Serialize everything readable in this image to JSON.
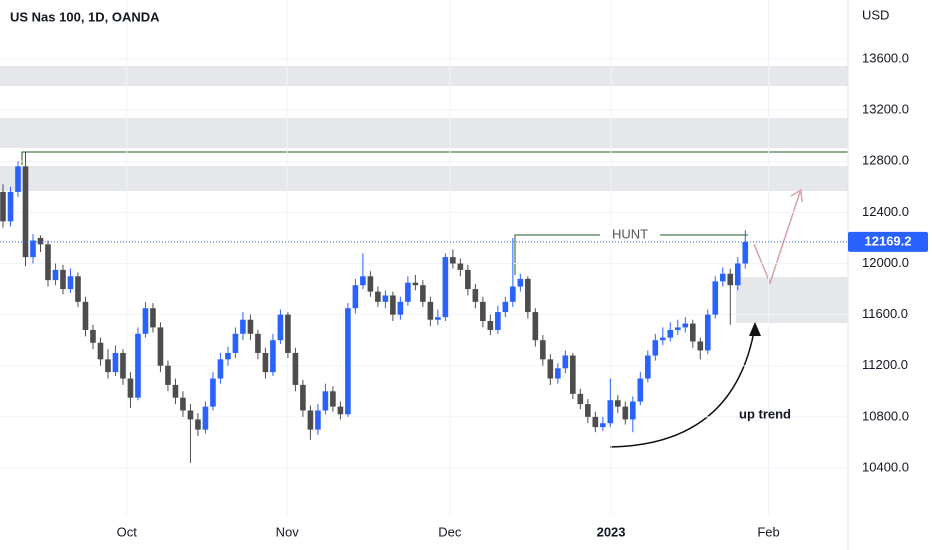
{
  "chart_data": {
    "type": "candlestick",
    "title": "US Nas 100, 1D, OANDA",
    "y_axis_label": "USD",
    "annotations": [
      "HUNT",
      "up trend"
    ],
    "up_color": "#2962ff",
    "down_color": "#4d4d4d",
    "open": [
      12560,
      12330,
      12560,
      12760,
      12050,
      12200,
      12150,
      11870,
      11950,
      11800,
      11900,
      11700,
      11480,
      11380,
      11250,
      11150,
      11300,
      11100,
      10950,
      11450,
      11650,
      11500,
      11200,
      11050,
      10950,
      10850,
      10780,
      10700,
      10880,
      11100,
      11250,
      11300,
      11450,
      11560,
      11450,
      11300,
      11150,
      11400,
      11600,
      11300,
      11050,
      10850,
      10700,
      10850,
      11000,
      10880,
      10820,
      11650,
      11830,
      11900,
      11780,
      11700,
      11750,
      11600,
      11700,
      11850,
      11830,
      11700,
      11560,
      11580,
      12050,
      12000,
      11950,
      11800,
      11700,
      11550,
      11480,
      11620,
      11700,
      11820,
      11880,
      11620,
      11400,
      11250,
      11100,
      11180,
      11280,
      10980,
      10900,
      10800,
      10720,
      10750,
      10930,
      10880,
      10780,
      10920,
      11100,
      11280,
      11400,
      11420,
      11480,
      11500,
      11530,
      11390,
      11320,
      11600,
      11860,
      11920,
      11830,
      12000
    ],
    "high": [
      12620,
      12600,
      12800,
      12870,
      12230,
      12220,
      12180,
      12000,
      11990,
      11960,
      11930,
      11740,
      11520,
      11420,
      11330,
      11360,
      11330,
      11150,
      11500,
      11700,
      11690,
      11540,
      11240,
      11100,
      11000,
      10900,
      10830,
      10920,
      11150,
      11300,
      11350,
      11500,
      11620,
      11600,
      11480,
      11340,
      11450,
      11640,
      11620,
      11340,
      11090,
      10890,
      10900,
      11060,
      11040,
      10920,
      11690,
      11880,
      12080,
      11940,
      11820,
      11790,
      11780,
      11740,
      11900,
      11910,
      11870,
      11740,
      11640,
      12080,
      12110,
      12040,
      11990,
      11840,
      11740,
      11600,
      11670,
      11740,
      12200,
      11920,
      11900,
      11650,
      11440,
      11290,
      11220,
      11320,
      11300,
      11020,
      10940,
      10840,
      10800,
      11100,
      10970,
      10920,
      10960,
      11150,
      11320,
      11450,
      11500,
      11540,
      11560,
      11580,
      11560,
      11420,
      11640,
      11900,
      11970,
      11960,
      12050,
      12260
    ],
    "low": [
      12280,
      12290,
      12520,
      11980,
      12000,
      12090,
      11820,
      11830,
      11760,
      11770,
      11660,
      11430,
      11330,
      11200,
      11100,
      11120,
      11050,
      10870,
      10930,
      11420,
      11460,
      11150,
      11000,
      10900,
      10800,
      10440,
      10650,
      10670,
      10850,
      11060,
      11200,
      11260,
      11400,
      11400,
      11250,
      11100,
      11120,
      11370,
      11260,
      11000,
      10800,
      10620,
      10660,
      10820,
      10840,
      10780,
      10800,
      11610,
      11800,
      11740,
      11660,
      11650,
      11550,
      11560,
      11670,
      11790,
      11660,
      11510,
      11520,
      11550,
      11960,
      11900,
      11750,
      11650,
      11500,
      11440,
      11450,
      11580,
      11660,
      11780,
      11570,
      11350,
      11200,
      11050,
      11060,
      11140,
      10940,
      10860,
      10750,
      10680,
      10690,
      10720,
      10830,
      10740,
      10680,
      10890,
      11070,
      11240,
      11360,
      11390,
      11440,
      11460,
      11340,
      11250,
      11290,
      11570,
      11820,
      11520,
      11790,
      11960
    ],
    "close": [
      12330,
      12560,
      12760,
      12050,
      12180,
      12150,
      11870,
      11950,
      11800,
      11900,
      11700,
      11480,
      11380,
      11250,
      11150,
      11300,
      11100,
      10950,
      11450,
      11650,
      11500,
      11200,
      11050,
      10950,
      10850,
      10780,
      10700,
      10880,
      11100,
      11250,
      11300,
      11450,
      11560,
      11450,
      11300,
      11150,
      11400,
      11600,
      11300,
      11050,
      10850,
      10700,
      10850,
      11000,
      10880,
      10820,
      11650,
      11830,
      11900,
      11780,
      11700,
      11750,
      11600,
      11700,
      11850,
      11830,
      11700,
      11560,
      11580,
      12050,
      12000,
      11950,
      11800,
      11700,
      11550,
      11480,
      11620,
      11700,
      11820,
      11880,
      11620,
      11400,
      11250,
      11100,
      11180,
      11280,
      10980,
      10900,
      10800,
      10720,
      10750,
      10930,
      10880,
      10780,
      10920,
      11100,
      11280,
      11400,
      11420,
      11480,
      11500,
      11530,
      11390,
      11320,
      11600,
      11860,
      11920,
      11830,
      12000,
      12169.2
    ],
    "xlim": [
      -0.4,
      112.7
    ],
    "xticks": [
      {
        "value": 16.5,
        "label": "Oct"
      },
      {
        "value": 37.9,
        "label": "Nov"
      },
      {
        "value": 59.6,
        "label": "Dec"
      },
      {
        "value": 81.1,
        "label": "2023"
      },
      {
        "value": 102.1,
        "label": "Feb"
      }
    ],
    "ylim": [
      10032,
      14062
    ],
    "yticks": [
      {
        "value": 10400,
        "label": "10400.0"
      },
      {
        "value": 10800,
        "label": "10800.0"
      },
      {
        "value": 11200,
        "label": "11200.0"
      },
      {
        "value": 11600,
        "label": "11600.0"
      },
      {
        "value": 12000,
        "label": "12000.0"
      },
      {
        "value": 12400,
        "label": "12400.0"
      },
      {
        "value": 12800,
        "label": "12800.0"
      },
      {
        "value": 13200,
        "label": "13200.0"
      },
      {
        "value": 13600,
        "label": "13600.0"
      }
    ]
  }
}
